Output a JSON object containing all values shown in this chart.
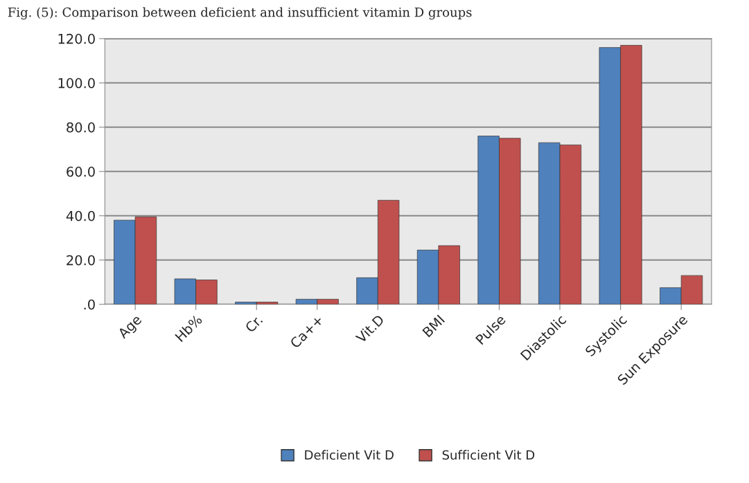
{
  "chart_data": {
    "type": "bar",
    "title": "Fig. (5): Comparison between deficient and insufficient vitamin D groups",
    "categories": [
      "Age",
      "Hb%",
      "Cr.",
      "Ca++",
      "Vit.D",
      "BMI",
      "Pulse",
      "Diastolic",
      "Systolic",
      "Sun Exposure"
    ],
    "series": [
      {
        "name": "Deficient Vit D",
        "color": "#4f81bd",
        "values": [
          38,
          11.5,
          1.0,
          2.3,
          12,
          24.5,
          76,
          73,
          116,
          7.5
        ]
      },
      {
        "name": "Sufficient Vit D",
        "color": "#c0504d",
        "values": [
          39.5,
          11,
          1.0,
          2.3,
          47,
          26.5,
          75,
          72,
          117,
          13
        ]
      }
    ],
    "ylim": [
      0,
      120
    ],
    "yticks": [
      {
        "value": 0,
        "label": ".0"
      },
      {
        "value": 20,
        "label": "20.0"
      },
      {
        "value": 40,
        "label": "40.0"
      },
      {
        "value": 60,
        "label": "60.0"
      },
      {
        "value": 80,
        "label": "80.0"
      },
      {
        "value": 100,
        "label": "100.0"
      },
      {
        "value": 120,
        "label": "120.0"
      }
    ],
    "grid": "y",
    "legend": "bottom"
  }
}
